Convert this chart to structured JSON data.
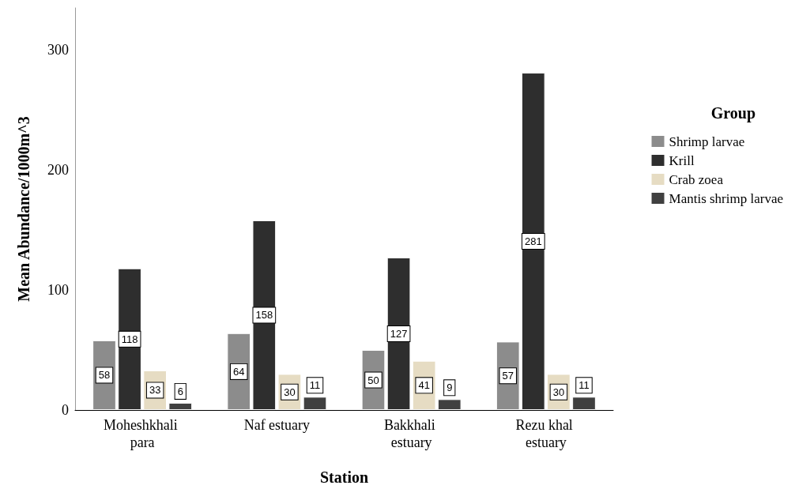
{
  "chart_data": {
    "type": "bar",
    "xlabel": "Station",
    "ylabel": "Mean Abundance/1000m^3",
    "legend_title": "Group",
    "categories": [
      "Moheshkhali para",
      "Naf estuary",
      "Bakkhali estuary",
      "Rezu khal estuary"
    ],
    "series": [
      {
        "name": "Shrimp larvae",
        "color": "#8c8c8c",
        "values": [
          58,
          64,
          50,
          57
        ]
      },
      {
        "name": "Krill",
        "color": "#2e2e2e",
        "values": [
          118,
          158,
          127,
          281
        ]
      },
      {
        "name": "Crab zoea",
        "color": "#e6dcc3",
        "values": [
          33,
          30,
          41,
          30
        ]
      },
      {
        "name": "Mantis shrimp larvae",
        "color": "#404040",
        "values": [
          6,
          11,
          9,
          11
        ]
      }
    ],
    "ylim": [
      0,
      335
    ],
    "yticks": [
      0,
      100,
      200,
      300
    ],
    "grid": false,
    "legend": "right",
    "data_labels": true
  }
}
